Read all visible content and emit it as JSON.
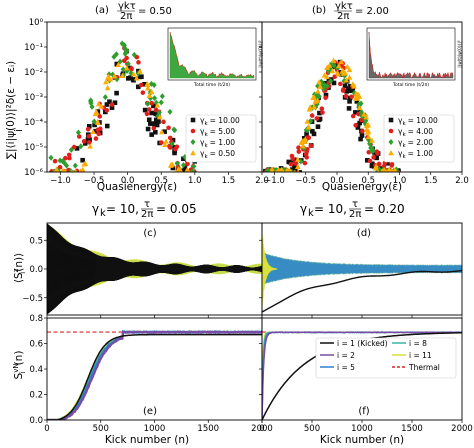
{
  "colors": {
    "black": "#111111",
    "red": "#e0201b",
    "green": "#2f9e2f",
    "orange": "#ffab00",
    "yellow": "#d8e03a",
    "purple": "#7b4aa6",
    "blue": "#2f7fd0",
    "teal": "#35b7a0",
    "thermal": "#d62728",
    "inset_fill": "#2a9d2a"
  },
  "chart_data": [
    {
      "id": "a",
      "type": "scatter",
      "panel_label": "(a)",
      "title": "γkτ/2π = 0.50",
      "title_left": "γkτ",
      "title_den": "2π",
      "title_right": "= 0.50",
      "xlabel": "Quasienergy(ε)",
      "ylabel": "Σ |⟨i|ψ(0)⟩|² δ(ε − εᵢ)",
      "ylabel_main": "∑|⟨i|ψ(0)⟩|²δ(ε − εᵢ)",
      "ylabel_sub": "i",
      "xlim": [
        -1.2,
        2.0
      ],
      "ylim_exp": [
        -6,
        0
      ],
      "log_y": true,
      "xticks": [
        "−1.0",
        "−0.5",
        "0.0",
        "0.5",
        "1.0",
        "1.5",
        "2.0"
      ],
      "xtick_vals": [
        -1.0,
        -0.5,
        0.0,
        0.5,
        1.0,
        1.5,
        2.0
      ],
      "yticks": [
        "10⁻⁶",
        "10⁻⁵",
        "10⁻⁴",
        "10⁻³",
        "10⁻²",
        "10⁻¹",
        "10⁰"
      ],
      "legend_position": "bottom-right",
      "series": [
        {
          "name": "γk = 10.00",
          "label": "γ",
          "sub": "k",
          "val": "= 10.00",
          "marker": "square",
          "color": "#111111",
          "peak_exp": -0.9,
          "width": 0.35
        },
        {
          "name": "γk = 5.00",
          "label": "γ",
          "sub": "k",
          "val": "= 5.00",
          "marker": "circle",
          "color": "#e0201b",
          "peak_exp": -0.8,
          "width": 0.38
        },
        {
          "name": "γk = 1.00",
          "label": "γ",
          "sub": "k",
          "val": "= 1.00",
          "marker": "diamond",
          "color": "#2f9e2f",
          "peak_exp": -0.7,
          "width": 0.45
        },
        {
          "name": "γk = 0.50",
          "label": "γ",
          "sub": "k",
          "val": "= 0.50",
          "marker": "triangle",
          "color": "#ffab00",
          "peak_exp": -1.3,
          "width": 0.42
        }
      ],
      "inset": {
        "xlabel": "Total time (t/2π)",
        "ylabel": "|⟨ψ(t)|ψ(0)⟩|²"
      }
    },
    {
      "id": "b",
      "type": "scatter",
      "panel_label": "(b)",
      "title": "γkτ/2π = 2.00",
      "title_left": "γkτ",
      "title_den": "2π",
      "title_right": "= 2.00",
      "xlabel": "Quasienergy(ε)",
      "xlim": [
        -1.2,
        2.0
      ],
      "ylim_exp": [
        -6,
        0
      ],
      "log_y": true,
      "xticks": [
        "−1.0",
        "−0.5",
        "0.0",
        "0.5",
        "1.0",
        "1.5",
        "2.0"
      ],
      "xtick_vals": [
        -1.0,
        -0.5,
        0.0,
        0.5,
        1.0,
        1.5,
        2.0
      ],
      "legend_position": "bottom-right",
      "series": [
        {
          "name": "γk = 10.00",
          "label": "γ",
          "sub": "k",
          "val": "= 10.00",
          "marker": "square",
          "color": "#111111",
          "peak_exp": -1.4,
          "width": 0.35
        },
        {
          "name": "γk = 4.00",
          "label": "γ",
          "sub": "k",
          "val": "= 4.00",
          "marker": "circle",
          "color": "#e0201b",
          "peak_exp": -1.3,
          "width": 0.35
        },
        {
          "name": "γk = 2.00",
          "label": "γ",
          "sub": "k",
          "val": "= 2.00",
          "marker": "diamond",
          "color": "#2f9e2f",
          "peak_exp": -1.6,
          "width": 0.3
        },
        {
          "name": "γk = 1.00",
          "label": "γ",
          "sub": "k",
          "val": "= 1.00",
          "marker": "triangle",
          "color": "#ffab00",
          "peak_exp": -1.5,
          "width": 0.3
        }
      ],
      "inset": {
        "xlabel": "Total time (t/2π)",
        "ylabel": "|⟨ψ(t)|ψ(0)⟩|²"
      }
    },
    {
      "id": "c",
      "type": "line",
      "panel_label": "(c)",
      "title": "γk = 10, τ/2π = 0.05",
      "title_left": "γ",
      "title_sub": "k",
      "title_mid": "= 10,",
      "title_frac_num": "τ",
      "title_frac_den": "2π",
      "title_right": "= 0.05",
      "ylabel": "⟨Sᶻᵢ(n)⟩",
      "ylabel_main": "⟨S",
      "ylabel_sup": "z",
      "ylabel_sub": "i",
      "ylabel_end": "(n)⟩",
      "xlim": [
        0,
        2000
      ],
      "ylim": [
        -0.8,
        0.8
      ],
      "yticks": [
        "−0.5",
        "0.0",
        "0.5"
      ],
      "ytick_vals": [
        -0.5,
        0.0,
        0.5
      ],
      "decay": 380,
      "amp0": 0.75
    },
    {
      "id": "d",
      "type": "line",
      "panel_label": "(d)",
      "title": "γk = 10, τ/2π = 0.20",
      "title_left": "γ",
      "title_sub": "k",
      "title_mid": "= 10,",
      "title_frac_num": "τ",
      "title_frac_den": "2π",
      "title_right": "= 0.20",
      "xlim": [
        0,
        2000
      ],
      "ylim": [
        -0.8,
        0.8
      ],
      "decay": 180,
      "amp0": 0.75
    },
    {
      "id": "e",
      "type": "line",
      "panel_label": "(e)",
      "xlabel": "Kick number (n)",
      "ylabel": "Sᵢᵛᴺ(n)",
      "ylabel_main": "S",
      "ylabel_sup": "vN",
      "ylabel_sub": "i",
      "ylabel_end": "(n)",
      "xlim": [
        0,
        2000
      ],
      "ylim": [
        0,
        0.8
      ],
      "xticks": [
        "0",
        "500",
        "1000",
        "1500",
        "2000"
      ],
      "xtick_vals": [
        0,
        500,
        1000,
        1500,
        2000
      ],
      "yticks": [
        "0.0",
        "0.2",
        "0.4",
        "0.6",
        "0.8"
      ],
      "ytick_vals": [
        0,
        0.2,
        0.4,
        0.6,
        0.8
      ],
      "thermal": 0.69,
      "rise": 380
    },
    {
      "id": "f",
      "type": "line",
      "panel_label": "(f)",
      "xlabel": "Kick number (n)",
      "xlim": [
        0,
        2000
      ],
      "ylim": [
        0,
        0.8
      ],
      "xticks": [
        "0",
        "500",
        "1000",
        "1500",
        "2000"
      ],
      "xtick_vals": [
        0,
        500,
        1000,
        1500,
        2000
      ],
      "thermal": 0.69,
      "legend_position": "center-right",
      "legend": [
        {
          "name": "i = 1 (Kicked)",
          "color": "#111111",
          "dash": false
        },
        {
          "name": "i = 2",
          "color": "#7b4aa6",
          "dash": false
        },
        {
          "name": "i = 5",
          "color": "#2f7fd0",
          "dash": false
        },
        {
          "name": "i = 8",
          "color": "#35b7a0",
          "dash": false
        },
        {
          "name": "i = 11",
          "color": "#d8e03a",
          "dash": false
        },
        {
          "name": "Thermal",
          "color": "#d62728",
          "dash": true
        }
      ]
    }
  ]
}
